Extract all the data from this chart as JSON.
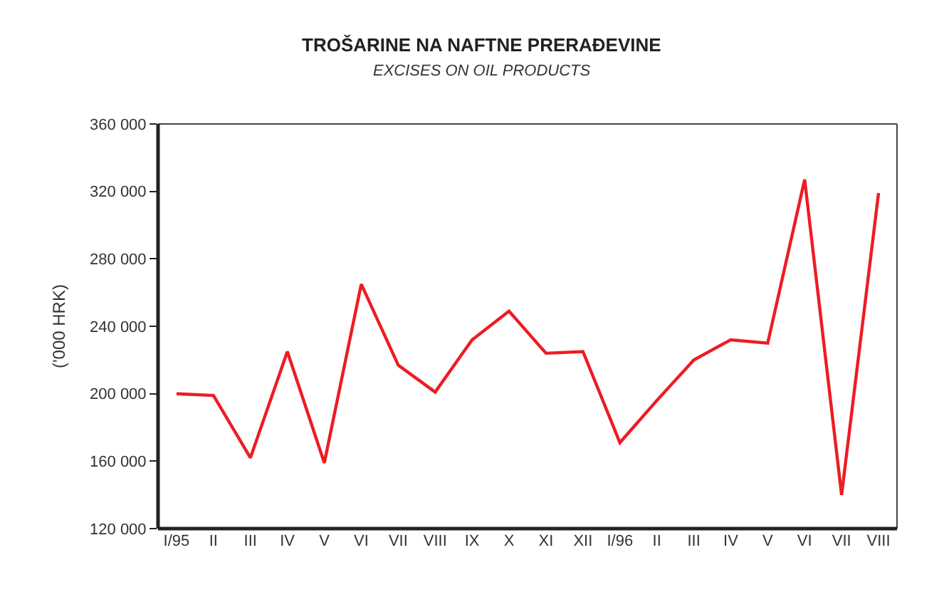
{
  "chart_data": {
    "type": "line",
    "title": "TROŠARINE NA NAFTNE PRERAĐEVINE",
    "subtitle": "EXCISES ON OIL PRODUCTS",
    "ylabel": "('000 HRK)",
    "categories": [
      "I/95",
      "II",
      "III",
      "IV",
      "V",
      "VI",
      "VII",
      "VIII",
      "IX",
      "X",
      "XI",
      "XII",
      "I/96",
      "II",
      "III",
      "IV",
      "V",
      "VI",
      "VII",
      "VIII"
    ],
    "series": [
      {
        "color": "#ed1c24",
        "values": [
          200000,
          199000,
          162000,
          225000,
          159000,
          265000,
          217000,
          201000,
          232000,
          249000,
          224000,
          225000,
          171000,
          196000,
          220000,
          232000,
          230000,
          327000,
          140000,
          319000
        ]
      }
    ],
    "ylim": [
      120000,
      360000
    ],
    "yticks": [
      {
        "value": 120000,
        "label": "120 000"
      },
      {
        "value": 160000,
        "label": "160 000"
      },
      {
        "value": 200000,
        "label": "200 000"
      },
      {
        "value": 240000,
        "label": "240 000"
      },
      {
        "value": 280000,
        "label": "280 000"
      },
      {
        "value": 320000,
        "label": "320 000"
      },
      {
        "value": 360000,
        "label": "360 000"
      }
    ],
    "marker": "none",
    "line_style": "solid"
  }
}
